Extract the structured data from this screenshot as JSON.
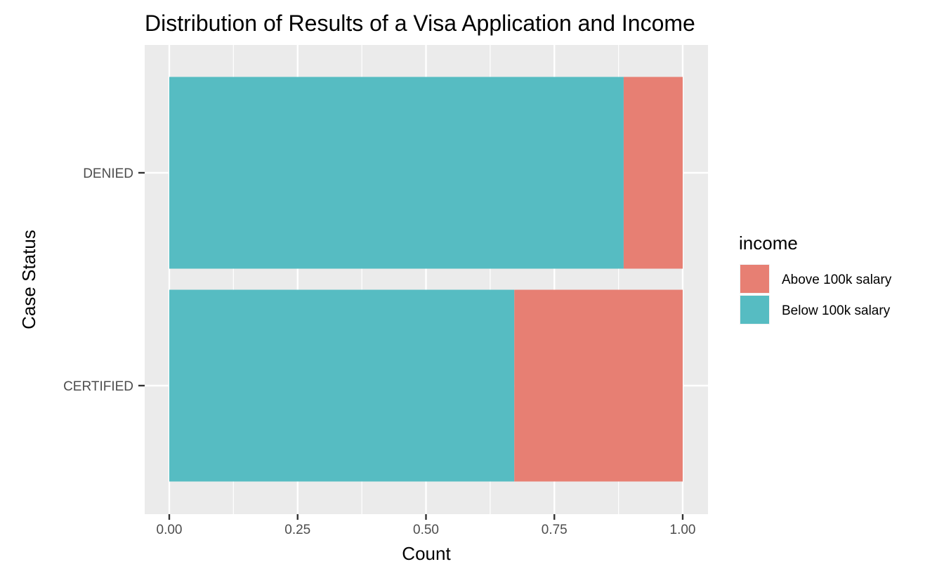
{
  "chart_data": {
    "type": "bar",
    "orientation": "horizontal",
    "stacked": true,
    "title": "Distribution of Results of a Visa Application and Income",
    "xlabel": "Count",
    "ylabel": "Case Status",
    "categories": [
      "DENIED",
      "CERTIFIED"
    ],
    "series": [
      {
        "name": "Below 100k salary",
        "color": "#56BCC2",
        "values": [
          0.885,
          0.672
        ]
      },
      {
        "name": "Above 100k salary",
        "color": "#E77F73",
        "values": [
          0.115,
          0.328
        ]
      }
    ],
    "xlim": [
      0,
      1
    ],
    "xticks": [
      0,
      0.25,
      0.5,
      0.75,
      1
    ],
    "xtick_labels": [
      "0.00",
      "0.25",
      "0.50",
      "0.75",
      "1.00"
    ],
    "grid": true,
    "legend": {
      "title": "income",
      "position": "right",
      "entries": [
        {
          "label": "Above 100k salary",
          "color": "#E77F73"
        },
        {
          "label": "Below 100k salary",
          "color": "#56BCC2"
        }
      ]
    },
    "panel_background": "#EBEBEB",
    "grid_color": "#FFFFFF"
  }
}
